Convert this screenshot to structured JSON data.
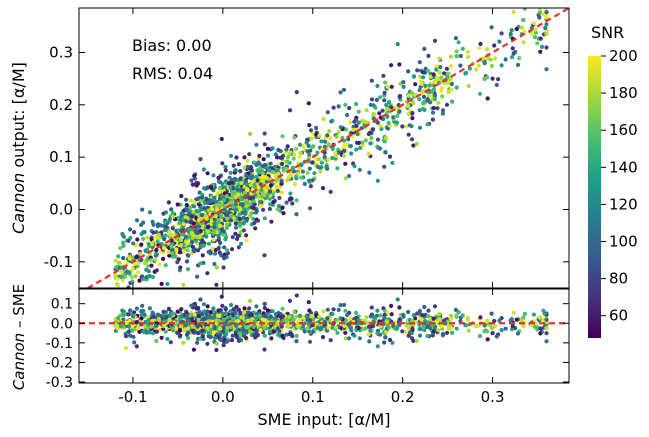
{
  "chart_data": [
    {
      "type": "scatter",
      "panel": "top",
      "xlim": [
        -0.16,
        0.385
      ],
      "ylim": [
        -0.15,
        0.385
      ],
      "yticks": [
        -0.1,
        0.0,
        0.1,
        0.2,
        0.3
      ],
      "ytick_labels": [
        "-0.1",
        "0.0",
        "0.1",
        "0.2",
        "0.3"
      ],
      "ylabel_italic": "Cannon",
      "ylabel_rest": " output: [α/M]",
      "annotations": [
        "Bias: 0.00",
        "RMS: 0.04"
      ],
      "reference_line": {
        "style": "dashed",
        "color": "#e8322a",
        "slope": 1,
        "intercept": 0
      },
      "color_by": "SNR",
      "point_cloud": {
        "n_points": 1900,
        "relation": "y ≈ x",
        "x_range": [
          -0.14,
          0.36
        ],
        "x_density_peak": 0.0,
        "residual_scatter": 0.04
      }
    },
    {
      "type": "scatter",
      "panel": "bottom",
      "xlim": [
        -0.16,
        0.385
      ],
      "ylim": [
        -0.305,
        0.175
      ],
      "yticks": [
        -0.3,
        -0.2,
        -0.1,
        0.0,
        0.1
      ],
      "ytick_labels": [
        "-0.3",
        "-0.2",
        "-0.1",
        "0.0",
        "0.1"
      ],
      "xticks": [
        -0.1,
        0.0,
        0.1,
        0.2,
        0.3
      ],
      "xtick_labels": [
        "-0.1",
        "0.0",
        "0.1",
        "0.2",
        "0.3"
      ],
      "xlabel": "SME input: [α/M]",
      "ylabel_italic": "Cannon",
      "ylabel_rest": " – SME",
      "reference_line": {
        "style": "dashed",
        "color": "#e8322a",
        "y": 0
      },
      "color_by": "SNR"
    }
  ],
  "colorbar": {
    "label": "SNR",
    "range": [
      48,
      200
    ],
    "ticks": [
      60,
      80,
      100,
      120,
      140,
      160,
      180,
      200
    ],
    "tick_labels": [
      "60",
      "80",
      "100",
      "120",
      "140",
      "160",
      "180",
      "200"
    ],
    "colormap": "viridis",
    "colors": [
      "#440154",
      "#46327e",
      "#365c8d",
      "#277f8e",
      "#1fa187",
      "#4ac16d",
      "#a0da39",
      "#fde725"
    ]
  }
}
